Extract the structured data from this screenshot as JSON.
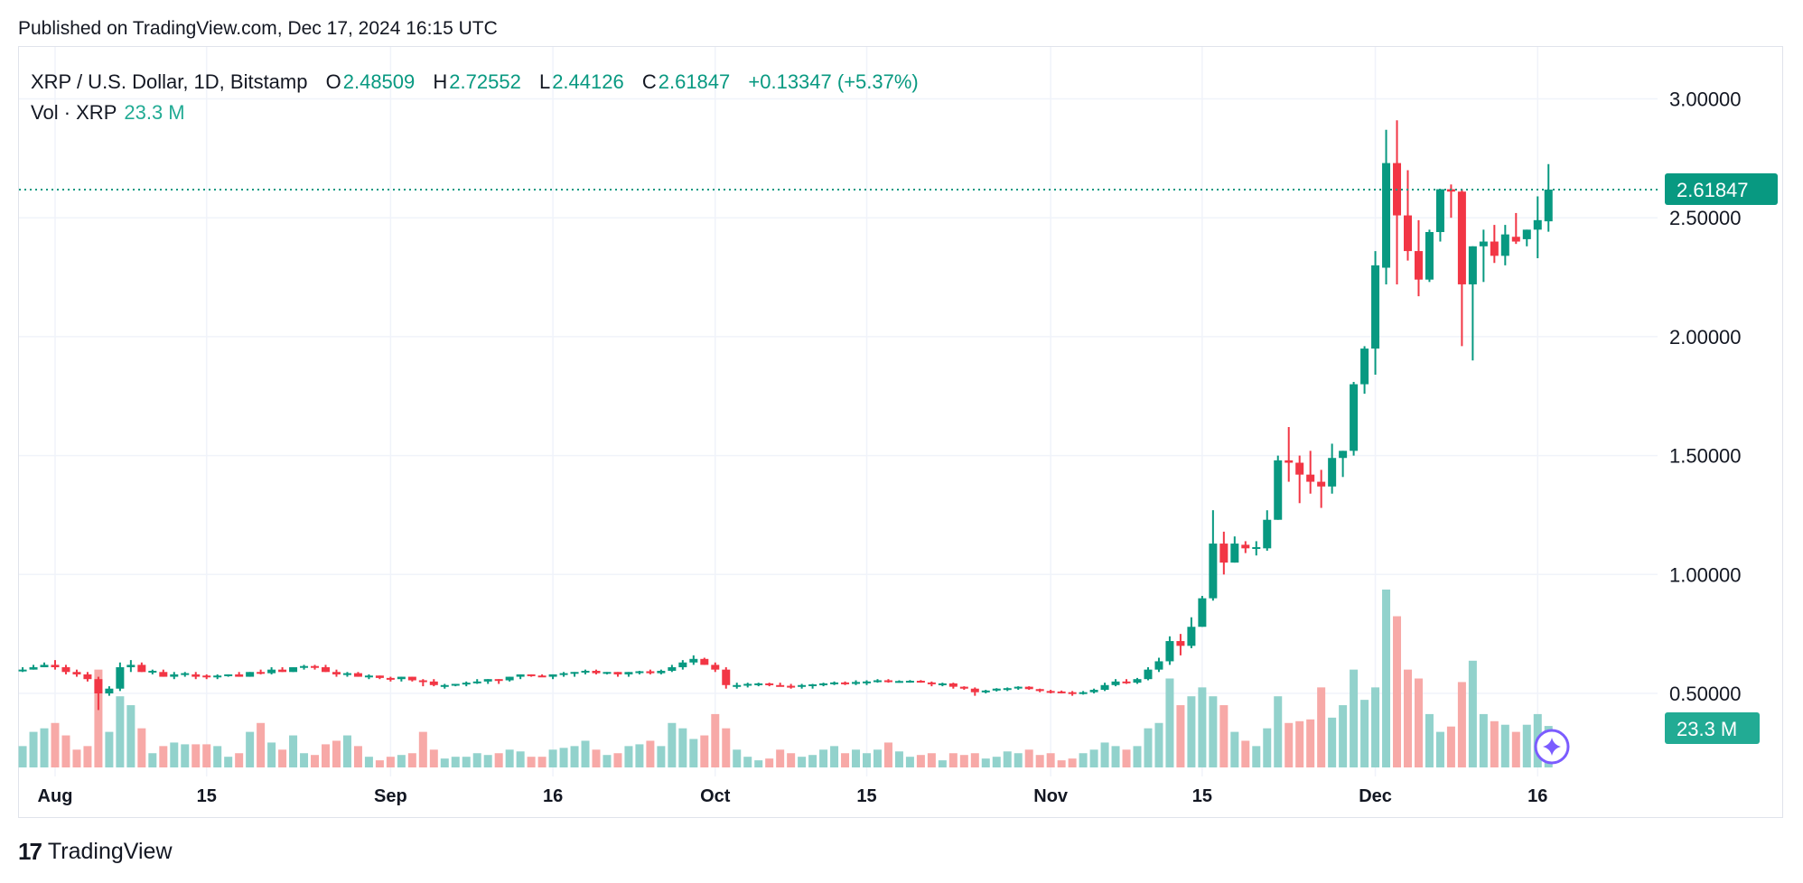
{
  "published": "Published on TradingView.com, Dec 17, 2024 16:15 UTC",
  "legend": {
    "symbol": "XRP / U.S. Dollar, 1D, Bitstamp",
    "open_label": "O",
    "open": "2.48509",
    "high_label": "H",
    "high": "2.72552",
    "low_label": "L",
    "low": "2.44126",
    "close_label": "C",
    "close": "2.61847",
    "change": "+0.13347 (+5.37%)"
  },
  "volume_legend": {
    "label": "Vol · XRP",
    "value": "23.3 M"
  },
  "footer": {
    "logo_mark": "17",
    "brand": "TradingView"
  },
  "colors": {
    "up": "#089981",
    "down": "#f23645",
    "vol_up": "#92d2cc",
    "vol_down": "#f7a9a7",
    "grid": "#f0f3fa",
    "ai_icon": "#7b5cff"
  },
  "chart_data": {
    "type": "candlestick",
    "price_axis": {
      "ticks": [
        "3.00000",
        "2.50000",
        "2.00000",
        "1.50000",
        "1.00000",
        "0.50000"
      ],
      "ylim": [
        0.5,
        3.0
      ]
    },
    "time_axis": {
      "ticks": [
        {
          "label": "Aug",
          "date": "2024-08-01"
        },
        {
          "label": "15",
          "date": "2024-08-15"
        },
        {
          "label": "Sep",
          "date": "2024-09-01"
        },
        {
          "label": "16",
          "date": "2024-09-16"
        },
        {
          "label": "Oct",
          "date": "2024-10-01"
        },
        {
          "label": "15",
          "date": "2024-10-15"
        },
        {
          "label": "Nov",
          "date": "2024-11-01"
        },
        {
          "label": "15",
          "date": "2024-11-15"
        },
        {
          "label": "Dec",
          "date": "2024-12-01"
        },
        {
          "label": "16",
          "date": "2024-12-16"
        }
      ]
    },
    "last_price": {
      "value": 2.61847,
      "label": "2.61847"
    },
    "last_volume": {
      "label": "23.3 M"
    },
    "volume_unit": "M",
    "columns": [
      "date",
      "open",
      "high",
      "low",
      "close",
      "volume"
    ],
    "candles": [
      [
        "2024-07-29",
        0.6,
        0.61,
        0.59,
        0.6,
        12
      ],
      [
        "2024-07-30",
        0.6,
        0.62,
        0.6,
        0.61,
        20
      ],
      [
        "2024-07-31",
        0.61,
        0.63,
        0.61,
        0.62,
        22
      ],
      [
        "2024-08-01",
        0.62,
        0.64,
        0.6,
        0.61,
        25
      ],
      [
        "2024-08-02",
        0.61,
        0.62,
        0.58,
        0.59,
        18
      ],
      [
        "2024-08-03",
        0.59,
        0.6,
        0.57,
        0.58,
        10
      ],
      [
        "2024-08-04",
        0.58,
        0.59,
        0.55,
        0.56,
        12
      ],
      [
        "2024-08-05",
        0.56,
        0.57,
        0.43,
        0.5,
        55
      ],
      [
        "2024-08-06",
        0.5,
        0.53,
        0.49,
        0.52,
        20
      ],
      [
        "2024-08-07",
        0.52,
        0.63,
        0.51,
        0.61,
        40
      ],
      [
        "2024-08-08",
        0.61,
        0.64,
        0.59,
        0.62,
        35
      ],
      [
        "2024-08-09",
        0.62,
        0.63,
        0.59,
        0.59,
        22
      ],
      [
        "2024-08-10",
        0.59,
        0.6,
        0.58,
        0.595,
        8
      ],
      [
        "2024-08-11",
        0.59,
        0.6,
        0.57,
        0.57,
        12
      ],
      [
        "2024-08-12",
        0.57,
        0.59,
        0.56,
        0.58,
        14
      ],
      [
        "2024-08-13",
        0.58,
        0.59,
        0.57,
        0.585,
        13
      ],
      [
        "2024-08-14",
        0.58,
        0.59,
        0.56,
        0.57,
        13
      ],
      [
        "2024-08-15",
        0.575,
        0.58,
        0.56,
        0.57,
        13
      ],
      [
        "2024-08-16",
        0.57,
        0.58,
        0.56,
        0.575,
        12
      ],
      [
        "2024-08-17",
        0.575,
        0.58,
        0.57,
        0.58,
        6
      ],
      [
        "2024-08-18",
        0.58,
        0.59,
        0.57,
        0.57,
        8
      ],
      [
        "2024-08-19",
        0.57,
        0.59,
        0.57,
        0.59,
        20
      ],
      [
        "2024-08-20",
        0.59,
        0.6,
        0.58,
        0.585,
        25
      ],
      [
        "2024-08-21",
        0.585,
        0.61,
        0.58,
        0.6,
        14
      ],
      [
        "2024-08-22",
        0.6,
        0.61,
        0.59,
        0.59,
        10
      ],
      [
        "2024-08-23",
        0.59,
        0.61,
        0.59,
        0.61,
        18
      ],
      [
        "2024-08-24",
        0.61,
        0.62,
        0.6,
        0.615,
        8
      ],
      [
        "2024-08-25",
        0.615,
        0.62,
        0.6,
        0.61,
        7
      ],
      [
        "2024-08-26",
        0.61,
        0.62,
        0.59,
        0.59,
        13
      ],
      [
        "2024-08-27",
        0.59,
        0.6,
        0.57,
        0.58,
        15
      ],
      [
        "2024-08-28",
        0.58,
        0.59,
        0.57,
        0.585,
        18
      ],
      [
        "2024-08-29",
        0.585,
        0.59,
        0.57,
        0.57,
        12
      ],
      [
        "2024-08-30",
        0.57,
        0.58,
        0.56,
        0.575,
        6
      ],
      [
        "2024-08-31",
        0.575,
        0.575,
        0.56,
        0.565,
        4
      ],
      [
        "2024-09-01",
        0.565,
        0.57,
        0.55,
        0.56,
        6
      ],
      [
        "2024-09-02",
        0.56,
        0.57,
        0.55,
        0.57,
        7
      ],
      [
        "2024-09-03",
        0.57,
        0.57,
        0.55,
        0.555,
        8
      ],
      [
        "2024-09-04",
        0.555,
        0.56,
        0.53,
        0.55,
        20
      ],
      [
        "2024-09-05",
        0.55,
        0.56,
        0.53,
        0.535,
        10
      ],
      [
        "2024-09-06",
        0.53,
        0.54,
        0.52,
        0.535,
        5
      ],
      [
        "2024-09-07",
        0.535,
        0.54,
        0.53,
        0.54,
        6
      ],
      [
        "2024-09-08",
        0.54,
        0.55,
        0.53,
        0.545,
        6
      ],
      [
        "2024-09-09",
        0.545,
        0.56,
        0.54,
        0.55,
        8
      ],
      [
        "2024-09-10",
        0.55,
        0.56,
        0.54,
        0.56,
        7
      ],
      [
        "2024-09-11",
        0.56,
        0.56,
        0.54,
        0.555,
        8
      ],
      [
        "2024-09-12",
        0.555,
        0.57,
        0.55,
        0.57,
        10
      ],
      [
        "2024-09-13",
        0.57,
        0.58,
        0.56,
        0.58,
        9
      ],
      [
        "2024-09-14",
        0.58,
        0.58,
        0.57,
        0.575,
        6
      ],
      [
        "2024-09-15",
        0.575,
        0.58,
        0.57,
        0.57,
        6
      ],
      [
        "2024-09-16",
        0.57,
        0.58,
        0.56,
        0.58,
        10
      ],
      [
        "2024-09-17",
        0.58,
        0.59,
        0.57,
        0.585,
        11
      ],
      [
        "2024-09-18",
        0.585,
        0.59,
        0.57,
        0.59,
        12
      ],
      [
        "2024-09-19",
        0.59,
        0.6,
        0.58,
        0.595,
        15
      ],
      [
        "2024-09-20",
        0.595,
        0.6,
        0.58,
        0.585,
        10
      ],
      [
        "2024-09-21",
        0.585,
        0.59,
        0.58,
        0.59,
        7
      ],
      [
        "2024-09-22",
        0.59,
        0.59,
        0.57,
        0.58,
        8
      ],
      [
        "2024-09-23",
        0.58,
        0.59,
        0.57,
        0.59,
        12
      ],
      [
        "2024-09-24",
        0.59,
        0.595,
        0.58,
        0.593,
        13
      ],
      [
        "2024-09-25",
        0.593,
        0.6,
        0.58,
        0.585,
        15
      ],
      [
        "2024-09-26",
        0.585,
        0.6,
        0.58,
        0.595,
        12
      ],
      [
        "2024-09-27",
        0.595,
        0.62,
        0.59,
        0.61,
        25
      ],
      [
        "2024-09-28",
        0.61,
        0.64,
        0.6,
        0.63,
        22
      ],
      [
        "2024-09-29",
        0.63,
        0.66,
        0.62,
        0.645,
        16
      ],
      [
        "2024-09-30",
        0.645,
        0.65,
        0.62,
        0.62,
        18
      ],
      [
        "2024-10-01",
        0.62,
        0.63,
        0.59,
        0.6,
        30
      ],
      [
        "2024-10-02",
        0.6,
        0.61,
        0.52,
        0.535,
        22
      ],
      [
        "2024-10-03",
        0.53,
        0.545,
        0.52,
        0.535,
        10
      ],
      [
        "2024-10-04",
        0.535,
        0.545,
        0.525,
        0.54,
        6
      ],
      [
        "2024-10-05",
        0.54,
        0.545,
        0.53,
        0.542,
        4
      ],
      [
        "2024-10-06",
        0.542,
        0.545,
        0.53,
        0.535,
        5
      ],
      [
        "2024-10-07",
        0.535,
        0.545,
        0.53,
        0.532,
        10
      ],
      [
        "2024-10-08",
        0.532,
        0.54,
        0.52,
        0.528,
        8
      ],
      [
        "2024-10-09",
        0.528,
        0.54,
        0.52,
        0.535,
        6
      ],
      [
        "2024-10-10",
        0.535,
        0.54,
        0.52,
        0.538,
        7
      ],
      [
        "2024-10-11",
        0.538,
        0.545,
        0.53,
        0.542,
        10
      ],
      [
        "2024-10-12",
        0.542,
        0.55,
        0.535,
        0.546,
        12
      ],
      [
        "2024-10-13",
        0.546,
        0.55,
        0.535,
        0.54,
        8
      ],
      [
        "2024-10-14",
        0.54,
        0.555,
        0.535,
        0.548,
        10
      ],
      [
        "2024-10-15",
        0.548,
        0.555,
        0.535,
        0.55,
        8
      ],
      [
        "2024-10-16",
        0.55,
        0.56,
        0.545,
        0.555,
        10
      ],
      [
        "2024-10-17",
        0.555,
        0.56,
        0.545,
        0.548,
        14
      ],
      [
        "2024-10-18",
        0.548,
        0.555,
        0.545,
        0.552,
        9
      ],
      [
        "2024-10-19",
        0.552,
        0.556,
        0.545,
        0.553,
        6
      ],
      [
        "2024-10-20",
        0.553,
        0.556,
        0.545,
        0.546,
        7
      ],
      [
        "2024-10-21",
        0.546,
        0.55,
        0.53,
        0.54,
        8
      ],
      [
        "2024-10-22",
        0.54,
        0.545,
        0.53,
        0.542,
        4
      ],
      [
        "2024-10-23",
        0.542,
        0.545,
        0.52,
        0.528,
        8
      ],
      [
        "2024-10-24",
        0.528,
        0.53,
        0.515,
        0.52,
        7
      ],
      [
        "2024-10-25",
        0.52,
        0.525,
        0.49,
        0.505,
        8
      ],
      [
        "2024-10-26",
        0.505,
        0.515,
        0.5,
        0.512,
        5
      ],
      [
        "2024-10-27",
        0.512,
        0.522,
        0.508,
        0.52,
        6
      ],
      [
        "2024-10-28",
        0.52,
        0.525,
        0.51,
        0.522,
        9
      ],
      [
        "2024-10-29",
        0.522,
        0.53,
        0.515,
        0.528,
        8
      ],
      [
        "2024-10-30",
        0.528,
        0.53,
        0.515,
        0.518,
        10
      ],
      [
        "2024-10-31",
        0.518,
        0.52,
        0.505,
        0.51,
        7
      ],
      [
        "2024-11-01",
        0.51,
        0.515,
        0.5,
        0.508,
        8
      ],
      [
        "2024-11-02",
        0.508,
        0.512,
        0.5,
        0.505,
        4
      ],
      [
        "2024-11-03",
        0.505,
        0.51,
        0.49,
        0.5,
        5
      ],
      [
        "2024-11-04",
        0.5,
        0.51,
        0.495,
        0.505,
        8
      ],
      [
        "2024-11-05",
        0.505,
        0.52,
        0.5,
        0.515,
        10
      ],
      [
        "2024-11-06",
        0.515,
        0.545,
        0.51,
        0.535,
        14
      ],
      [
        "2024-11-07",
        0.535,
        0.56,
        0.53,
        0.55,
        12
      ],
      [
        "2024-11-08",
        0.55,
        0.56,
        0.54,
        0.545,
        10
      ],
      [
        "2024-11-09",
        0.545,
        0.565,
        0.54,
        0.56,
        12
      ],
      [
        "2024-11-10",
        0.56,
        0.61,
        0.555,
        0.6,
        22
      ],
      [
        "2024-11-11",
        0.6,
        0.65,
        0.59,
        0.635,
        25
      ],
      [
        "2024-11-12",
        0.635,
        0.74,
        0.62,
        0.72,
        50
      ],
      [
        "2024-11-13",
        0.72,
        0.75,
        0.66,
        0.7,
        35
      ],
      [
        "2024-11-14",
        0.7,
        0.82,
        0.69,
        0.78,
        40
      ],
      [
        "2024-11-15",
        0.78,
        0.91,
        0.78,
        0.9,
        45
      ],
      [
        "2024-11-16",
        0.9,
        1.27,
        0.89,
        1.13,
        40
      ],
      [
        "2024-11-17",
        1.13,
        1.18,
        1.0,
        1.05,
        35
      ],
      [
        "2024-11-18",
        1.05,
        1.16,
        1.05,
        1.13,
        20
      ],
      [
        "2024-11-19",
        1.125,
        1.14,
        1.09,
        1.11,
        15
      ],
      [
        "2024-11-20",
        1.11,
        1.14,
        1.08,
        1.115,
        12
      ],
      [
        "2024-11-21",
        1.11,
        1.27,
        1.1,
        1.23,
        22
      ],
      [
        "2024-11-22",
        1.23,
        1.5,
        1.23,
        1.48,
        40
      ],
      [
        "2024-11-23",
        1.48,
        1.62,
        1.39,
        1.47,
        25
      ],
      [
        "2024-11-24",
        1.47,
        1.5,
        1.3,
        1.42,
        26
      ],
      [
        "2024-11-25",
        1.42,
        1.52,
        1.34,
        1.39,
        27
      ],
      [
        "2024-11-26",
        1.39,
        1.44,
        1.28,
        1.37,
        45
      ],
      [
        "2024-11-27",
        1.37,
        1.55,
        1.34,
        1.49,
        28
      ],
      [
        "2024-11-28",
        1.49,
        1.52,
        1.41,
        1.52,
        35
      ],
      [
        "2024-11-29",
        1.52,
        1.81,
        1.5,
        1.8,
        55
      ],
      [
        "2024-11-30",
        1.8,
        1.96,
        1.76,
        1.95,
        38
      ],
      [
        "2024-12-01",
        1.95,
        2.36,
        1.84,
        2.3,
        45
      ],
      [
        "2024-12-02",
        2.29,
        2.87,
        2.22,
        2.73,
        100
      ],
      [
        "2024-12-03",
        2.73,
        2.91,
        2.22,
        2.51,
        85
      ],
      [
        "2024-12-04",
        2.51,
        2.7,
        2.32,
        2.36,
        55
      ],
      [
        "2024-12-05",
        2.36,
        2.49,
        2.17,
        2.24,
        50
      ],
      [
        "2024-12-06",
        2.24,
        2.45,
        2.23,
        2.44,
        30
      ],
      [
        "2024-12-07",
        2.44,
        2.62,
        2.4,
        2.62,
        20
      ],
      [
        "2024-12-08",
        2.62,
        2.64,
        2.5,
        2.61,
        23
      ],
      [
        "2024-12-09",
        2.61,
        2.62,
        1.96,
        2.22,
        48
      ],
      [
        "2024-12-10",
        2.22,
        2.38,
        1.9,
        2.38,
        60
      ],
      [
        "2024-12-11",
        2.38,
        2.45,
        2.23,
        2.4,
        30
      ],
      [
        "2024-12-12",
        2.4,
        2.47,
        2.31,
        2.34,
        26
      ],
      [
        "2024-12-13",
        2.34,
        2.47,
        2.3,
        2.43,
        24
      ],
      [
        "2024-12-14",
        2.42,
        2.52,
        2.39,
        2.4,
        20
      ],
      [
        "2024-12-15",
        2.41,
        2.45,
        2.38,
        2.45,
        24
      ],
      [
        "2024-12-16",
        2.45,
        2.59,
        2.33,
        2.49,
        30
      ],
      [
        "2024-12-17",
        2.48509,
        2.72552,
        2.44126,
        2.61847,
        23.3
      ]
    ]
  }
}
